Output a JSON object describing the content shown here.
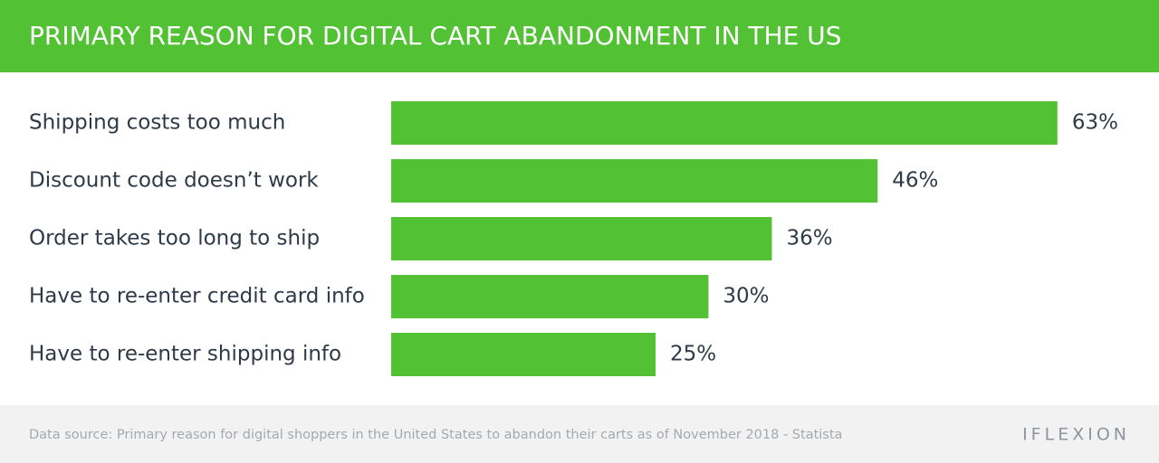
{
  "chart_data": {
    "type": "bar",
    "orientation": "horizontal",
    "title": "PRIMARY REASON FOR DIGITAL CART ABANDONMENT IN THE US",
    "categories": [
      "Shipping costs too much",
      "Discount code doesn’t work",
      "Order takes too long to ship",
      "Have to re-enter credit card info",
      "Have to re-enter shipping info"
    ],
    "values": [
      63,
      46,
      36,
      30,
      25
    ],
    "value_labels": [
      "63%",
      "46%",
      "36%",
      "30%",
      "25%"
    ],
    "color": "#52c234",
    "source": "Data source: Primary reason for digital shoppers in the United States to abandon their carts as of November 2018 - Statista",
    "logo": "IFLEXION"
  }
}
